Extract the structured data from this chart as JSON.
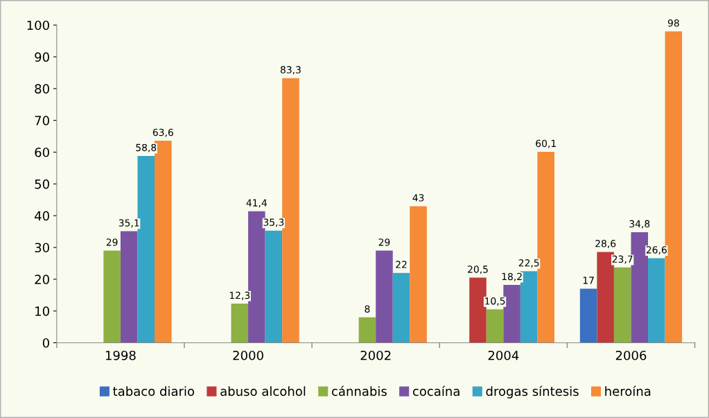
{
  "chart_data": {
    "type": "bar",
    "categories": [
      "1998",
      "2000",
      "2002",
      "2004",
      "2006"
    ],
    "series": [
      {
        "name": "tabaco diario",
        "color": "#3b6fc2",
        "values": [
          null,
          null,
          null,
          null,
          17
        ],
        "value_labels": [
          null,
          null,
          null,
          null,
          "17"
        ]
      },
      {
        "name": "abuso alcohol",
        "color": "#c0393b",
        "values": [
          null,
          null,
          null,
          20.5,
          28.6
        ],
        "value_labels": [
          null,
          null,
          null,
          "20,5",
          "28,6"
        ]
      },
      {
        "name": "cánnabis",
        "color": "#8db042",
        "values": [
          29,
          12.3,
          8,
          10.5,
          23.7
        ],
        "value_labels": [
          "29",
          "12,3",
          "8",
          "10,5",
          "23,7"
        ]
      },
      {
        "name": "cocaína",
        "color": "#7a54a3",
        "values": [
          35.1,
          41.4,
          29,
          18.2,
          34.8
        ],
        "value_labels": [
          "35,1",
          "41,4",
          "29",
          "18,2",
          "34,8"
        ]
      },
      {
        "name": "drogas síntesis",
        "color": "#36a5c6",
        "values": [
          58.8,
          35.3,
          22,
          22.5,
          26.6
        ],
        "value_labels": [
          "58,8",
          "35,3",
          "22",
          "22,5",
          "26,6"
        ]
      },
      {
        "name": "heroína",
        "color": "#f58a37",
        "values": [
          63.6,
          83.3,
          43,
          60.1,
          98
        ],
        "value_labels": [
          "63,6",
          "83,3",
          "43",
          "60,1",
          "98"
        ]
      }
    ],
    "ylim": [
      0,
      100
    ],
    "yticks": [
      0,
      10,
      20,
      30,
      40,
      50,
      60,
      70,
      80,
      90,
      100
    ],
    "grid": false,
    "legend": "bottom"
  }
}
